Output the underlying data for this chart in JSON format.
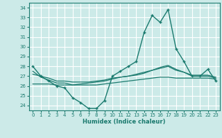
{
  "title": "",
  "xlabel": "Humidex (Indice chaleur)",
  "bg_color": "#cceae8",
  "grid_color": "#ffffff",
  "line_color": "#1a7a6e",
  "ylim": [
    23.5,
    34.5
  ],
  "xlim": [
    -0.5,
    23.5
  ],
  "yticks": [
    24,
    25,
    26,
    27,
    28,
    29,
    30,
    31,
    32,
    33,
    34
  ],
  "xticks": [
    0,
    1,
    2,
    3,
    4,
    5,
    6,
    7,
    8,
    9,
    10,
    11,
    12,
    13,
    14,
    15,
    16,
    17,
    18,
    19,
    20,
    21,
    22,
    23
  ],
  "series": {
    "main": [
      28.0,
      27.0,
      26.5,
      26.0,
      25.8,
      24.8,
      24.3,
      23.7,
      23.7,
      24.5,
      27.0,
      27.5,
      28.0,
      28.5,
      31.5,
      33.2,
      32.5,
      33.8,
      29.8,
      28.5,
      27.0,
      27.0,
      27.7,
      26.5
    ],
    "line2": [
      27.2,
      27.0,
      26.8,
      26.5,
      26.5,
      26.4,
      26.4,
      26.4,
      26.5,
      26.6,
      26.8,
      26.9,
      27.0,
      27.1,
      27.3,
      27.6,
      27.9,
      28.1,
      27.7,
      27.4,
      27.0,
      27.0,
      27.0,
      26.8
    ],
    "line3": [
      26.2,
      26.2,
      26.2,
      26.1,
      26.1,
      26.1,
      26.1,
      26.1,
      26.1,
      26.2,
      26.3,
      26.4,
      26.5,
      26.6,
      26.7,
      26.8,
      26.9,
      26.9,
      26.8,
      26.8,
      26.8,
      26.8,
      26.8,
      26.7
    ],
    "line4": [
      27.5,
      26.9,
      26.6,
      26.3,
      26.3,
      26.1,
      26.2,
      26.3,
      26.4,
      26.5,
      26.7,
      26.9,
      27.0,
      27.2,
      27.4,
      27.6,
      27.8,
      28.0,
      27.6,
      27.4,
      27.1,
      27.1,
      27.1,
      26.9
    ]
  }
}
